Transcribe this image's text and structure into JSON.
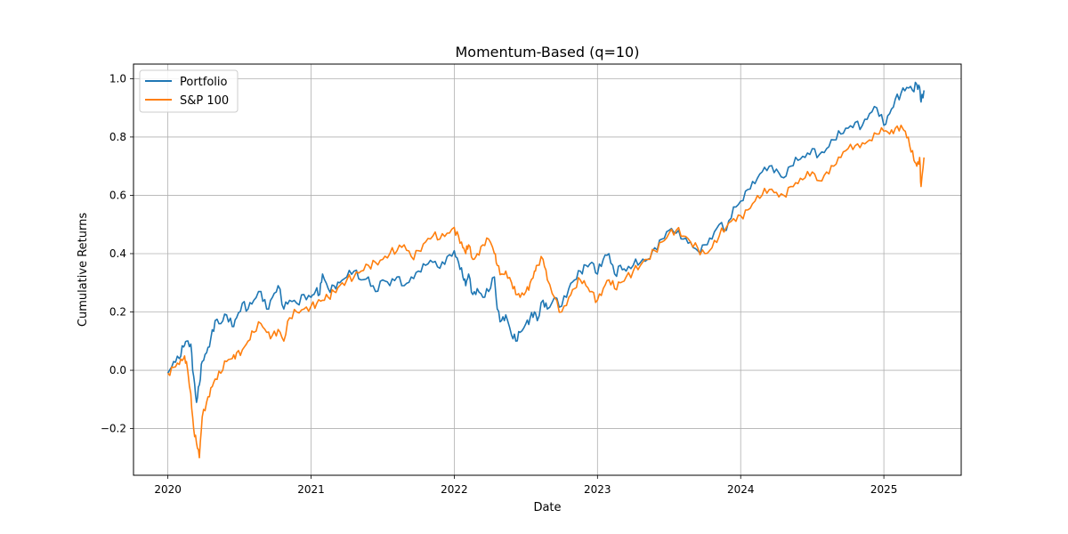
{
  "chart_data": {
    "type": "line",
    "title": "Momentum-Based (q=10)",
    "xlabel": "Date",
    "ylabel": "Cumulative Returns",
    "xlim": [
      2019.76,
      2025.54
    ],
    "ylim": [
      -0.36,
      1.05
    ],
    "x_ticks": [
      2020,
      2021,
      2022,
      2023,
      2024,
      2025
    ],
    "x_tick_labels": [
      "2020",
      "2021",
      "2022",
      "2023",
      "2024",
      "2025"
    ],
    "y_ticks": [
      -0.2,
      0.0,
      0.2,
      0.4,
      0.6,
      0.8,
      1.0
    ],
    "y_tick_labels": [
      "−0.2",
      "0.0",
      "0.2",
      "0.4",
      "0.6",
      "0.8",
      "1.0"
    ],
    "grid": true,
    "legend_position": "upper-left",
    "series": [
      {
        "name": "Portfolio",
        "color": "#1f77b4",
        "points": [
          [
            2020.0,
            -0.01
          ],
          [
            2020.04,
            0.03
          ],
          [
            2020.08,
            0.04
          ],
          [
            2020.11,
            0.08
          ],
          [
            2020.13,
            0.1
          ],
          [
            2020.16,
            0.09
          ],
          [
            2020.18,
            -0.02
          ],
          [
            2020.2,
            -0.11
          ],
          [
            2020.22,
            -0.05
          ],
          [
            2020.24,
            0.03
          ],
          [
            2020.27,
            0.06
          ],
          [
            2020.3,
            0.11
          ],
          [
            2020.33,
            0.17
          ],
          [
            2020.37,
            0.16
          ],
          [
            2020.41,
            0.19
          ],
          [
            2020.45,
            0.15
          ],
          [
            2020.48,
            0.18
          ],
          [
            2020.52,
            0.23
          ],
          [
            2020.56,
            0.21
          ],
          [
            2020.6,
            0.24
          ],
          [
            2020.65,
            0.27
          ],
          [
            2020.69,
            0.21
          ],
          [
            2020.73,
            0.25
          ],
          [
            2020.77,
            0.29
          ],
          [
            2020.81,
            0.21
          ],
          [
            2020.85,
            0.24
          ],
          [
            2020.9,
            0.23
          ],
          [
            2020.95,
            0.26
          ],
          [
            2021.0,
            0.25
          ],
          [
            2021.03,
            0.27
          ],
          [
            2021.06,
            0.26
          ],
          [
            2021.08,
            0.33
          ],
          [
            2021.12,
            0.28
          ],
          [
            2021.16,
            0.29
          ],
          [
            2021.2,
            0.3
          ],
          [
            2021.25,
            0.32
          ],
          [
            2021.3,
            0.34
          ],
          [
            2021.35,
            0.31
          ],
          [
            2021.4,
            0.32
          ],
          [
            2021.45,
            0.27
          ],
          [
            2021.5,
            0.31
          ],
          [
            2021.55,
            0.29
          ],
          [
            2021.6,
            0.32
          ],
          [
            2021.65,
            0.29
          ],
          [
            2021.7,
            0.32
          ],
          [
            2021.75,
            0.34
          ],
          [
            2021.8,
            0.36
          ],
          [
            2021.85,
            0.37
          ],
          [
            2021.9,
            0.35
          ],
          [
            2021.95,
            0.39
          ],
          [
            2022.0,
            0.41
          ],
          [
            2022.03,
            0.37
          ],
          [
            2022.06,
            0.32
          ],
          [
            2022.08,
            0.29
          ],
          [
            2022.1,
            0.33
          ],
          [
            2022.13,
            0.26
          ],
          [
            2022.16,
            0.28
          ],
          [
            2022.2,
            0.25
          ],
          [
            2022.24,
            0.27
          ],
          [
            2022.28,
            0.32
          ],
          [
            2022.3,
            0.21
          ],
          [
            2022.33,
            0.17
          ],
          [
            2022.36,
            0.19
          ],
          [
            2022.4,
            0.12
          ],
          [
            2022.43,
            0.1
          ],
          [
            2022.46,
            0.13
          ],
          [
            2022.5,
            0.16
          ],
          [
            2022.53,
            0.18
          ],
          [
            2022.56,
            0.2
          ],
          [
            2022.58,
            0.17
          ],
          [
            2022.62,
            0.24
          ],
          [
            2022.65,
            0.21
          ],
          [
            2022.7,
            0.25
          ],
          [
            2022.75,
            0.22
          ],
          [
            2022.8,
            0.28
          ],
          [
            2022.84,
            0.31
          ],
          [
            2022.88,
            0.34
          ],
          [
            2022.92,
            0.36
          ],
          [
            2022.96,
            0.37
          ],
          [
            2023.0,
            0.33
          ],
          [
            2023.04,
            0.38
          ],
          [
            2023.08,
            0.4
          ],
          [
            2023.12,
            0.33
          ],
          [
            2023.16,
            0.36
          ],
          [
            2023.2,
            0.34
          ],
          [
            2023.25,
            0.36
          ],
          [
            2023.3,
            0.37
          ],
          [
            2023.35,
            0.38
          ],
          [
            2023.4,
            0.42
          ],
          [
            2023.45,
            0.45
          ],
          [
            2023.5,
            0.48
          ],
          [
            2023.55,
            0.47
          ],
          [
            2023.6,
            0.45
          ],
          [
            2023.65,
            0.44
          ],
          [
            2023.7,
            0.41
          ],
          [
            2023.75,
            0.43
          ],
          [
            2023.8,
            0.45
          ],
          [
            2023.85,
            0.5
          ],
          [
            2023.9,
            0.48
          ],
          [
            2023.95,
            0.56
          ],
          [
            2024.0,
            0.58
          ],
          [
            2024.05,
            0.62
          ],
          [
            2024.1,
            0.64
          ],
          [
            2024.15,
            0.68
          ],
          [
            2024.2,
            0.7
          ],
          [
            2024.25,
            0.69
          ],
          [
            2024.3,
            0.66
          ],
          [
            2024.35,
            0.7
          ],
          [
            2024.4,
            0.72
          ],
          [
            2024.45,
            0.73
          ],
          [
            2024.5,
            0.76
          ],
          [
            2024.55,
            0.74
          ],
          [
            2024.6,
            0.76
          ],
          [
            2024.65,
            0.79
          ],
          [
            2024.7,
            0.81
          ],
          [
            2024.75,
            0.83
          ],
          [
            2024.8,
            0.85
          ],
          [
            2024.85,
            0.84
          ],
          [
            2024.9,
            0.88
          ],
          [
            2024.95,
            0.9
          ],
          [
            2025.0,
            0.84
          ],
          [
            2025.04,
            0.88
          ],
          [
            2025.08,
            0.93
          ],
          [
            2025.12,
            0.95
          ],
          [
            2025.16,
            0.97
          ],
          [
            2025.2,
            0.96
          ],
          [
            2025.23,
            0.98
          ],
          [
            2025.25,
            0.97
          ],
          [
            2025.26,
            0.92
          ],
          [
            2025.28,
            0.96
          ]
        ]
      },
      {
        "name": "S&P 100",
        "color": "#ff7f0e",
        "points": [
          [
            2020.0,
            -0.01
          ],
          [
            2020.04,
            0.01
          ],
          [
            2020.08,
            0.02
          ],
          [
            2020.11,
            0.04
          ],
          [
            2020.13,
            0.03
          ],
          [
            2020.16,
            -0.08
          ],
          [
            2020.18,
            -0.2
          ],
          [
            2020.2,
            -0.25
          ],
          [
            2020.22,
            -0.3
          ],
          [
            2020.24,
            -0.16
          ],
          [
            2020.27,
            -0.11
          ],
          [
            2020.3,
            -0.06
          ],
          [
            2020.33,
            -0.03
          ],
          [
            2020.37,
            -0.01
          ],
          [
            2020.41,
            0.03
          ],
          [
            2020.45,
            0.04
          ],
          [
            2020.48,
            0.06
          ],
          [
            2020.52,
            0.07
          ],
          [
            2020.56,
            0.1
          ],
          [
            2020.6,
            0.13
          ],
          [
            2020.65,
            0.16
          ],
          [
            2020.69,
            0.13
          ],
          [
            2020.73,
            0.12
          ],
          [
            2020.77,
            0.14
          ],
          [
            2020.81,
            0.1
          ],
          [
            2020.85,
            0.18
          ],
          [
            2020.9,
            0.2
          ],
          [
            2020.95,
            0.21
          ],
          [
            2021.0,
            0.22
          ],
          [
            2021.04,
            0.23
          ],
          [
            2021.08,
            0.24
          ],
          [
            2021.12,
            0.25
          ],
          [
            2021.16,
            0.27
          ],
          [
            2021.2,
            0.29
          ],
          [
            2021.25,
            0.31
          ],
          [
            2021.3,
            0.32
          ],
          [
            2021.35,
            0.34
          ],
          [
            2021.4,
            0.36
          ],
          [
            2021.45,
            0.37
          ],
          [
            2021.5,
            0.38
          ],
          [
            2021.55,
            0.4
          ],
          [
            2021.6,
            0.41
          ],
          [
            2021.65,
            0.43
          ],
          [
            2021.7,
            0.39
          ],
          [
            2021.75,
            0.41
          ],
          [
            2021.8,
            0.44
          ],
          [
            2021.85,
            0.46
          ],
          [
            2021.9,
            0.45
          ],
          [
            2021.95,
            0.47
          ],
          [
            2022.0,
            0.49
          ],
          [
            2022.03,
            0.46
          ],
          [
            2022.06,
            0.42
          ],
          [
            2022.08,
            0.4
          ],
          [
            2022.1,
            0.43
          ],
          [
            2022.13,
            0.38
          ],
          [
            2022.16,
            0.4
          ],
          [
            2022.2,
            0.43
          ],
          [
            2022.24,
            0.45
          ],
          [
            2022.28,
            0.4
          ],
          [
            2022.3,
            0.36
          ],
          [
            2022.33,
            0.33
          ],
          [
            2022.36,
            0.34
          ],
          [
            2022.4,
            0.3
          ],
          [
            2022.43,
            0.26
          ],
          [
            2022.46,
            0.25
          ],
          [
            2022.5,
            0.27
          ],
          [
            2022.53,
            0.3
          ],
          [
            2022.56,
            0.34
          ],
          [
            2022.58,
            0.36
          ],
          [
            2022.62,
            0.38
          ],
          [
            2022.65,
            0.31
          ],
          [
            2022.7,
            0.25
          ],
          [
            2022.75,
            0.2
          ],
          [
            2022.8,
            0.25
          ],
          [
            2022.84,
            0.28
          ],
          [
            2022.88,
            0.31
          ],
          [
            2022.92,
            0.29
          ],
          [
            2022.96,
            0.27
          ],
          [
            2023.0,
            0.24
          ],
          [
            2023.04,
            0.28
          ],
          [
            2023.08,
            0.31
          ],
          [
            2023.12,
            0.28
          ],
          [
            2023.16,
            0.3
          ],
          [
            2023.2,
            0.32
          ],
          [
            2023.25,
            0.34
          ],
          [
            2023.3,
            0.36
          ],
          [
            2023.35,
            0.38
          ],
          [
            2023.4,
            0.41
          ],
          [
            2023.45,
            0.44
          ],
          [
            2023.5,
            0.47
          ],
          [
            2023.55,
            0.48
          ],
          [
            2023.6,
            0.46
          ],
          [
            2023.65,
            0.44
          ],
          [
            2023.7,
            0.42
          ],
          [
            2023.75,
            0.4
          ],
          [
            2023.8,
            0.42
          ],
          [
            2023.85,
            0.46
          ],
          [
            2023.9,
            0.49
          ],
          [
            2023.95,
            0.52
          ],
          [
            2024.0,
            0.53
          ],
          [
            2024.05,
            0.55
          ],
          [
            2024.1,
            0.58
          ],
          [
            2024.15,
            0.6
          ],
          [
            2024.2,
            0.62
          ],
          [
            2024.25,
            0.61
          ],
          [
            2024.3,
            0.6
          ],
          [
            2024.35,
            0.63
          ],
          [
            2024.4,
            0.64
          ],
          [
            2024.45,
            0.66
          ],
          [
            2024.5,
            0.68
          ],
          [
            2024.55,
            0.65
          ],
          [
            2024.6,
            0.68
          ],
          [
            2024.65,
            0.7
          ],
          [
            2024.7,
            0.73
          ],
          [
            2024.75,
            0.76
          ],
          [
            2024.8,
            0.77
          ],
          [
            2024.85,
            0.78
          ],
          [
            2024.9,
            0.79
          ],
          [
            2024.95,
            0.81
          ],
          [
            2025.0,
            0.82
          ],
          [
            2025.04,
            0.81
          ],
          [
            2025.08,
            0.83
          ],
          [
            2025.12,
            0.84
          ],
          [
            2025.15,
            0.82
          ],
          [
            2025.18,
            0.77
          ],
          [
            2025.21,
            0.72
          ],
          [
            2025.23,
            0.7
          ],
          [
            2025.25,
            0.73
          ],
          [
            2025.26,
            0.63
          ],
          [
            2025.28,
            0.73
          ]
        ]
      }
    ]
  }
}
